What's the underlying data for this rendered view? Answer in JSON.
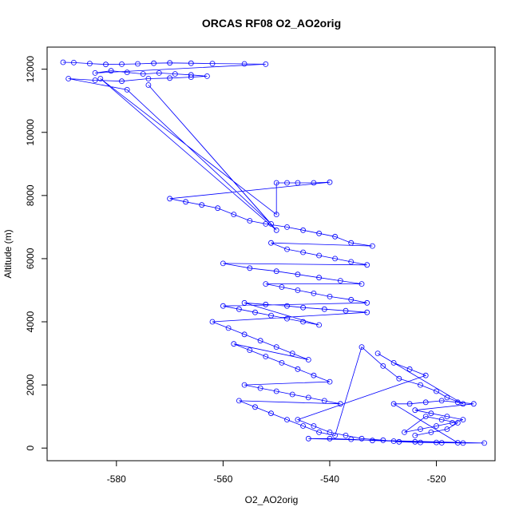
{
  "chart_data": {
    "type": "line",
    "title": "ORCAS RF08 O2_AO2orig",
    "xlabel": "O2_AO2orig",
    "ylabel": "Altitude (m)",
    "xlim": [
      -593,
      -509
    ],
    "ylim": [
      -400,
      12700
    ],
    "xticks": [
      -580,
      -560,
      -540,
      -520
    ],
    "yticks": [
      0,
      2000,
      4000,
      6000,
      8000,
      10000,
      12000
    ],
    "grid": false,
    "legend": "none",
    "marker": "open-circle",
    "line": true,
    "colors": {
      "series": "#0000ff",
      "axes": "#000000"
    },
    "series": [
      {
        "points": [
          [
            -590,
            12220
          ],
          [
            -588,
            12210
          ],
          [
            -585,
            12180
          ],
          [
            -582,
            12150
          ],
          [
            -579,
            12160
          ],
          [
            -576,
            12170
          ],
          [
            -573,
            12190
          ],
          [
            -570,
            12200
          ],
          [
            -566,
            12190
          ],
          [
            -562,
            12180
          ],
          [
            -556,
            12170
          ],
          [
            -552,
            12160
          ],
          [
            -584,
            11880
          ],
          [
            -581,
            11950
          ],
          [
            -578,
            11900
          ],
          [
            -575,
            11850
          ],
          [
            -572,
            11880
          ],
          [
            -569,
            11850
          ],
          [
            -566,
            11820
          ],
          [
            -563,
            11780
          ],
          [
            -566,
            11750
          ],
          [
            -570,
            11720
          ],
          [
            -574,
            11700
          ],
          [
            -579,
            11620
          ],
          [
            -584,
            11650
          ],
          [
            -589,
            11700
          ],
          [
            -578,
            11350
          ],
          [
            -551,
            7100
          ],
          [
            -574,
            11500
          ],
          [
            -550,
            6900
          ],
          [
            -583,
            11700
          ],
          [
            -550,
            7400
          ],
          [
            -550,
            8400
          ],
          [
            -548,
            8400
          ],
          [
            -546,
            8400
          ],
          [
            -543,
            8400
          ],
          [
            -540,
            8420
          ],
          [
            -570,
            7900
          ],
          [
            -567,
            7800
          ],
          [
            -564,
            7700
          ],
          [
            -561,
            7600
          ],
          [
            -558,
            7400
          ],
          [
            -555,
            7200
          ],
          [
            -552,
            7100
          ],
          [
            -548,
            7000
          ],
          [
            -545,
            6900
          ],
          [
            -542,
            6800
          ],
          [
            -539,
            6700
          ],
          [
            -536,
            6500
          ],
          [
            -532,
            6400
          ],
          [
            -551,
            6500
          ],
          [
            -548,
            6300
          ],
          [
            -545,
            6200
          ],
          [
            -542,
            6100
          ],
          [
            -539,
            6000
          ],
          [
            -536,
            5900
          ],
          [
            -533,
            5800
          ],
          [
            -560,
            5850
          ],
          [
            -555,
            5700
          ],
          [
            -550,
            5600
          ],
          [
            -546,
            5500
          ],
          [
            -542,
            5400
          ],
          [
            -538,
            5300
          ],
          [
            -534,
            5200
          ],
          [
            -552,
            5200
          ],
          [
            -549,
            5100
          ],
          [
            -546,
            5000
          ],
          [
            -543,
            4900
          ],
          [
            -540,
            4800
          ],
          [
            -536,
            4700
          ],
          [
            -533,
            4600
          ],
          [
            -560,
            4500
          ],
          [
            -557,
            4400
          ],
          [
            -554,
            4300
          ],
          [
            -551,
            4200
          ],
          [
            -548,
            4100
          ],
          [
            -545,
            4000
          ],
          [
            -542,
            3900
          ],
          [
            -556,
            4600
          ],
          [
            -552,
            4550
          ],
          [
            -548,
            4500
          ],
          [
            -545,
            4450
          ],
          [
            -541,
            4400
          ],
          [
            -537,
            4350
          ],
          [
            -533,
            4300
          ],
          [
            -562,
            4000
          ],
          [
            -559,
            3800
          ],
          [
            -556,
            3600
          ],
          [
            -553,
            3400
          ],
          [
            -550,
            3200
          ],
          [
            -547,
            3000
          ],
          [
            -544,
            2800
          ],
          [
            -558,
            3300
          ],
          [
            -555,
            3100
          ],
          [
            -552,
            2900
          ],
          [
            -549,
            2700
          ],
          [
            -546,
            2500
          ],
          [
            -543,
            2300
          ],
          [
            -540,
            2100
          ],
          [
            -556,
            2000
          ],
          [
            -553,
            1900
          ],
          [
            -550,
            1800
          ],
          [
            -547,
            1700
          ],
          [
            -544,
            1600
          ],
          [
            -541,
            1500
          ],
          [
            -538,
            1400
          ],
          [
            -557,
            1500
          ],
          [
            -554,
            1300
          ],
          [
            -551,
            1100
          ],
          [
            -548,
            900
          ],
          [
            -545,
            700
          ],
          [
            -542,
            500
          ],
          [
            -539,
            400
          ],
          [
            -534,
            3200
          ],
          [
            -530,
            2600
          ],
          [
            -527,
            2200
          ],
          [
            -523,
            2000
          ],
          [
            -520,
            1800
          ],
          [
            -518,
            1600
          ],
          [
            -515,
            1400
          ],
          [
            -531,
            3000
          ],
          [
            -528,
            2700
          ],
          [
            -525,
            2500
          ],
          [
            -522,
            2300
          ],
          [
            -546,
            900
          ],
          [
            -543,
            700
          ],
          [
            -540,
            500
          ],
          [
            -537,
            400
          ],
          [
            -534,
            300
          ],
          [
            -530,
            250
          ],
          [
            -527,
            200
          ],
          [
            -523,
            180
          ],
          [
            -519,
            170
          ],
          [
            -515,
            160
          ],
          [
            -511,
            160
          ],
          [
            -544,
            300
          ],
          [
            -540,
            300
          ],
          [
            -536,
            280
          ],
          [
            -532,
            240
          ],
          [
            -528,
            220
          ],
          [
            -524,
            200
          ],
          [
            -520,
            180
          ],
          [
            -516,
            170
          ],
          [
            -528,
            1400
          ],
          [
            -525,
            1400
          ],
          [
            -522,
            1450
          ],
          [
            -519,
            1500
          ],
          [
            -516,
            1450
          ],
          [
            -513,
            1400
          ],
          [
            -524,
            1200
          ],
          [
            -521,
            1100
          ],
          [
            -518,
            1000
          ],
          [
            -515,
            900
          ],
          [
            -517,
            800
          ],
          [
            -520,
            700
          ],
          [
            -523,
            600
          ],
          [
            -526,
            500
          ],
          [
            -522,
            1000
          ],
          [
            -519,
            900
          ],
          [
            -516,
            800
          ],
          [
            -518,
            600
          ],
          [
            -521,
            500
          ],
          [
            -524,
            400
          ]
        ]
      }
    ]
  }
}
